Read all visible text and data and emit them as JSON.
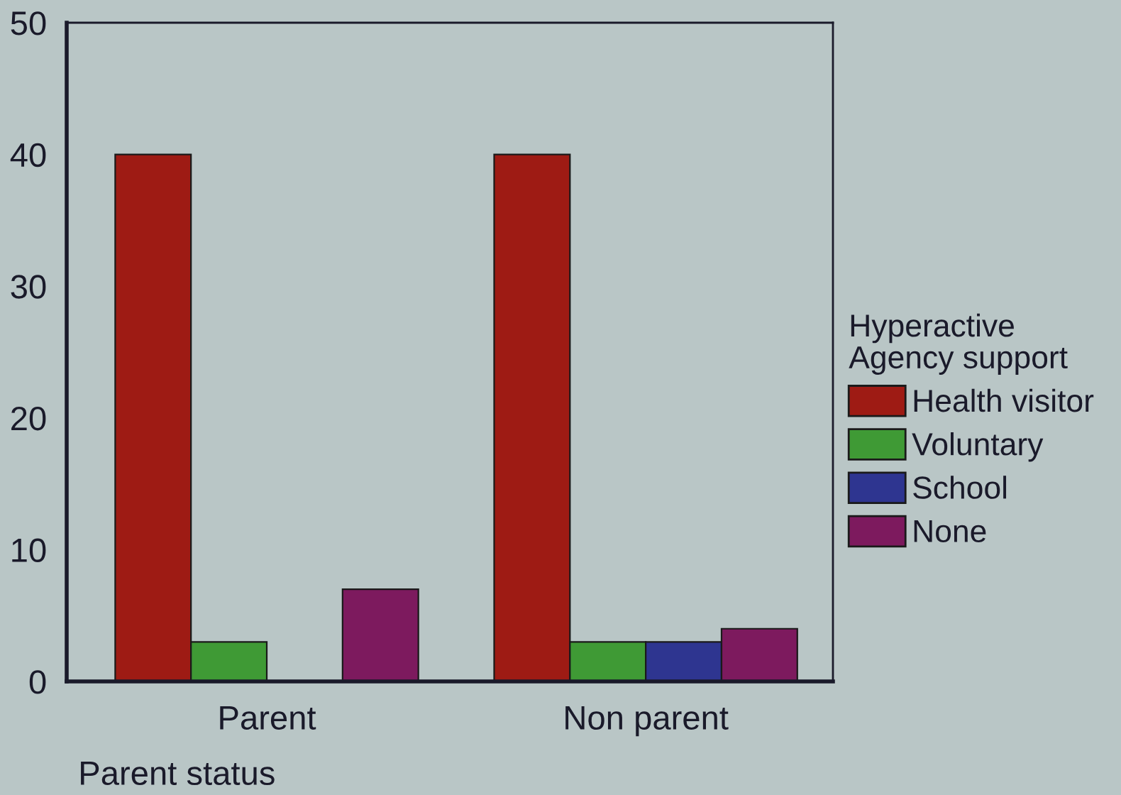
{
  "chart_data": {
    "type": "bar",
    "xlabel": "Parent status",
    "legend_title": "Hyperactive\nAgency support",
    "categories": [
      "Parent",
      "Non parent"
    ],
    "series": [
      {
        "name": "Health visitor",
        "color": "#9e1b14",
        "values": [
          40,
          40
        ]
      },
      {
        "name": "Voluntary",
        "color": "#3f9a35",
        "values": [
          3,
          3
        ]
      },
      {
        "name": "School",
        "color": "#2e3590",
        "values": [
          0,
          3
        ]
      },
      {
        "name": "None",
        "color": "#7d1a5e",
        "values": [
          7,
          4
        ]
      }
    ],
    "ylim": [
      0,
      50
    ],
    "yticks": [
      0,
      10,
      20,
      30,
      40,
      50
    ],
    "grid": false,
    "legend": "right"
  }
}
